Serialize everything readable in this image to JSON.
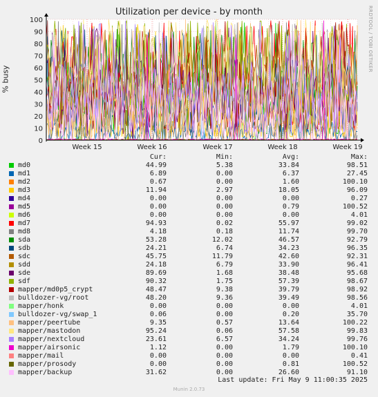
{
  "title": "Utilization per device - by month",
  "ylabel": "% busy",
  "vendor": "RRDTOOL / TOBI OETIKER",
  "columns": {
    "cur": "Cur:",
    "min": "Min:",
    "avg": "Avg:",
    "max": "Max:"
  },
  "last_update": "Last update: Fri May  9 11:00:35 2025",
  "footer": "Munin 2.0.73",
  "chart_data": {
    "type": "line",
    "title": "Utilization per device - by month",
    "ylabel": "% busy",
    "ylim": [
      0,
      100
    ],
    "yticks": [
      "0",
      "10",
      "20",
      "30",
      "40",
      "50",
      "60",
      "70",
      "80",
      "90",
      "100"
    ],
    "xtick_labels": [
      "Week 15",
      "Week 16",
      "Week 17",
      "Week 18",
      "Week 19"
    ],
    "grid": true,
    "series": [
      {
        "name": "md0",
        "color": "#00cc00",
        "cur": "44.99",
        "min": "5.38",
        "avg": "33.84",
        "max": "98.51"
      },
      {
        "name": "md1",
        "color": "#0066b3",
        "cur": "6.89",
        "min": "0.00",
        "avg": "6.37",
        "max": "27.45"
      },
      {
        "name": "md2",
        "color": "#ff8000",
        "cur": "0.67",
        "min": "0.00",
        "avg": "1.60",
        "max": "100.10"
      },
      {
        "name": "md3",
        "color": "#ffcc00",
        "cur": "11.94",
        "min": "2.97",
        "avg": "18.05",
        "max": "96.09"
      },
      {
        "name": "md4",
        "color": "#330099",
        "cur": "0.00",
        "min": "0.00",
        "avg": "0.00",
        "max": "0.27"
      },
      {
        "name": "md5",
        "color": "#990099",
        "cur": "0.00",
        "min": "0.00",
        "avg": "0.79",
        "max": "100.52"
      },
      {
        "name": "md6",
        "color": "#ccff00",
        "cur": "0.00",
        "min": "0.00",
        "avg": "0.00",
        "max": "4.01"
      },
      {
        "name": "md7",
        "color": "#ff0000",
        "cur": "94.93",
        "min": "0.02",
        "avg": "55.97",
        "max": "99.02"
      },
      {
        "name": "md8",
        "color": "#808080",
        "cur": "4.18",
        "min": "0.18",
        "avg": "11.74",
        "max": "99.70"
      },
      {
        "name": "sda",
        "color": "#008f00",
        "cur": "53.28",
        "min": "12.02",
        "avg": "46.57",
        "max": "92.79"
      },
      {
        "name": "sdb",
        "color": "#00487d",
        "cur": "24.21",
        "min": "6.74",
        "avg": "34.23",
        "max": "96.35"
      },
      {
        "name": "sdc",
        "color": "#b35a00",
        "cur": "45.75",
        "min": "11.79",
        "avg": "42.60",
        "max": "92.31"
      },
      {
        "name": "sdd",
        "color": "#b38f00",
        "cur": "24.18",
        "min": "6.79",
        "avg": "33.90",
        "max": "96.41"
      },
      {
        "name": "sde",
        "color": "#6b006b",
        "cur": "89.69",
        "min": "1.68",
        "avg": "38.48",
        "max": "95.68"
      },
      {
        "name": "sdf",
        "color": "#8fb300",
        "cur": "90.32",
        "min": "1.75",
        "avg": "57.39",
        "max": "98.67"
      },
      {
        "name": "mapper/md0p5_crypt",
        "color": "#b30000",
        "cur": "48.47",
        "min": "9.38",
        "avg": "39.79",
        "max": "98.92"
      },
      {
        "name": "bulldozer-vg/root",
        "color": "#bebebe",
        "cur": "48.20",
        "min": "9.36",
        "avg": "39.49",
        "max": "98.56"
      },
      {
        "name": "mapper/honk",
        "color": "#80ff80",
        "cur": "0.00",
        "min": "0.00",
        "avg": "0.00",
        "max": "4.01"
      },
      {
        "name": "bulldozer-vg/swap_1",
        "color": "#80c9ff",
        "cur": "0.06",
        "min": "0.00",
        "avg": "0.20",
        "max": "35.70"
      },
      {
        "name": "mapper/peertube",
        "color": "#ffc080",
        "cur": "9.35",
        "min": "0.57",
        "avg": "13.64",
        "max": "100.22"
      },
      {
        "name": "mapper/mastodon",
        "color": "#ffe680",
        "cur": "95.24",
        "min": "0.06",
        "avg": "57.58",
        "max": "99.83"
      },
      {
        "name": "mapper/nextcloud",
        "color": "#aa80ff",
        "cur": "23.61",
        "min": "6.57",
        "avg": "34.24",
        "max": "99.76"
      },
      {
        "name": "mapper/airsonic",
        "color": "#ee00cc",
        "cur": "1.12",
        "min": "0.00",
        "avg": "1.79",
        "max": "100.10"
      },
      {
        "name": "mapper/mail",
        "color": "#ff8080",
        "cur": "0.00",
        "min": "0.00",
        "avg": "0.00",
        "max": "0.41"
      },
      {
        "name": "mapper/prosody",
        "color": "#666600",
        "cur": "0.00",
        "min": "0.00",
        "avg": "0.81",
        "max": "100.52"
      },
      {
        "name": "mapper/backup",
        "color": "#ffbfff",
        "cur": "31.62",
        "min": "0.00",
        "avg": "26.60",
        "max": "91.10"
      }
    ]
  }
}
